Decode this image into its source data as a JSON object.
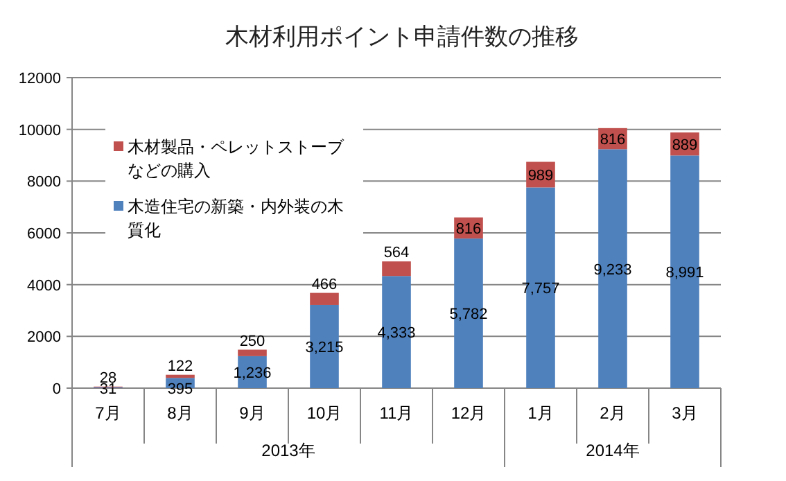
{
  "chart_data": {
    "type": "bar",
    "stacked": true,
    "title": "木材利用ポイント申請件数の推移",
    "categories": [
      "7月",
      "8月",
      "9月",
      "10月",
      "11月",
      "12月",
      "1月",
      "2月",
      "3月"
    ],
    "series": [
      {
        "name": "木造住宅の新築・内外装の木質化",
        "color": "#4f81bd",
        "values": [
          31,
          395,
          1236,
          3215,
          4333,
          5782,
          7757,
          9233,
          8991
        ],
        "value_labels": [
          "31",
          "395",
          "1,236",
          "3,215",
          "4,333",
          "5,782",
          "7,757",
          "9,233",
          "8,991"
        ]
      },
      {
        "name": "木材製品・ペレットストーブなどの購入",
        "color": "#c0504d",
        "values": [
          28,
          122,
          250,
          466,
          564,
          816,
          989,
          816,
          889
        ],
        "value_labels": [
          "28",
          "122",
          "250",
          "466",
          "564",
          "816",
          "989",
          "816",
          "889"
        ]
      }
    ],
    "ylim": [
      0,
      12000
    ],
    "yticks": [
      0,
      2000,
      4000,
      6000,
      8000,
      10000,
      12000
    ],
    "grid": "y",
    "legend": "left",
    "annotations": [
      "2013年",
      "2014年"
    ]
  }
}
